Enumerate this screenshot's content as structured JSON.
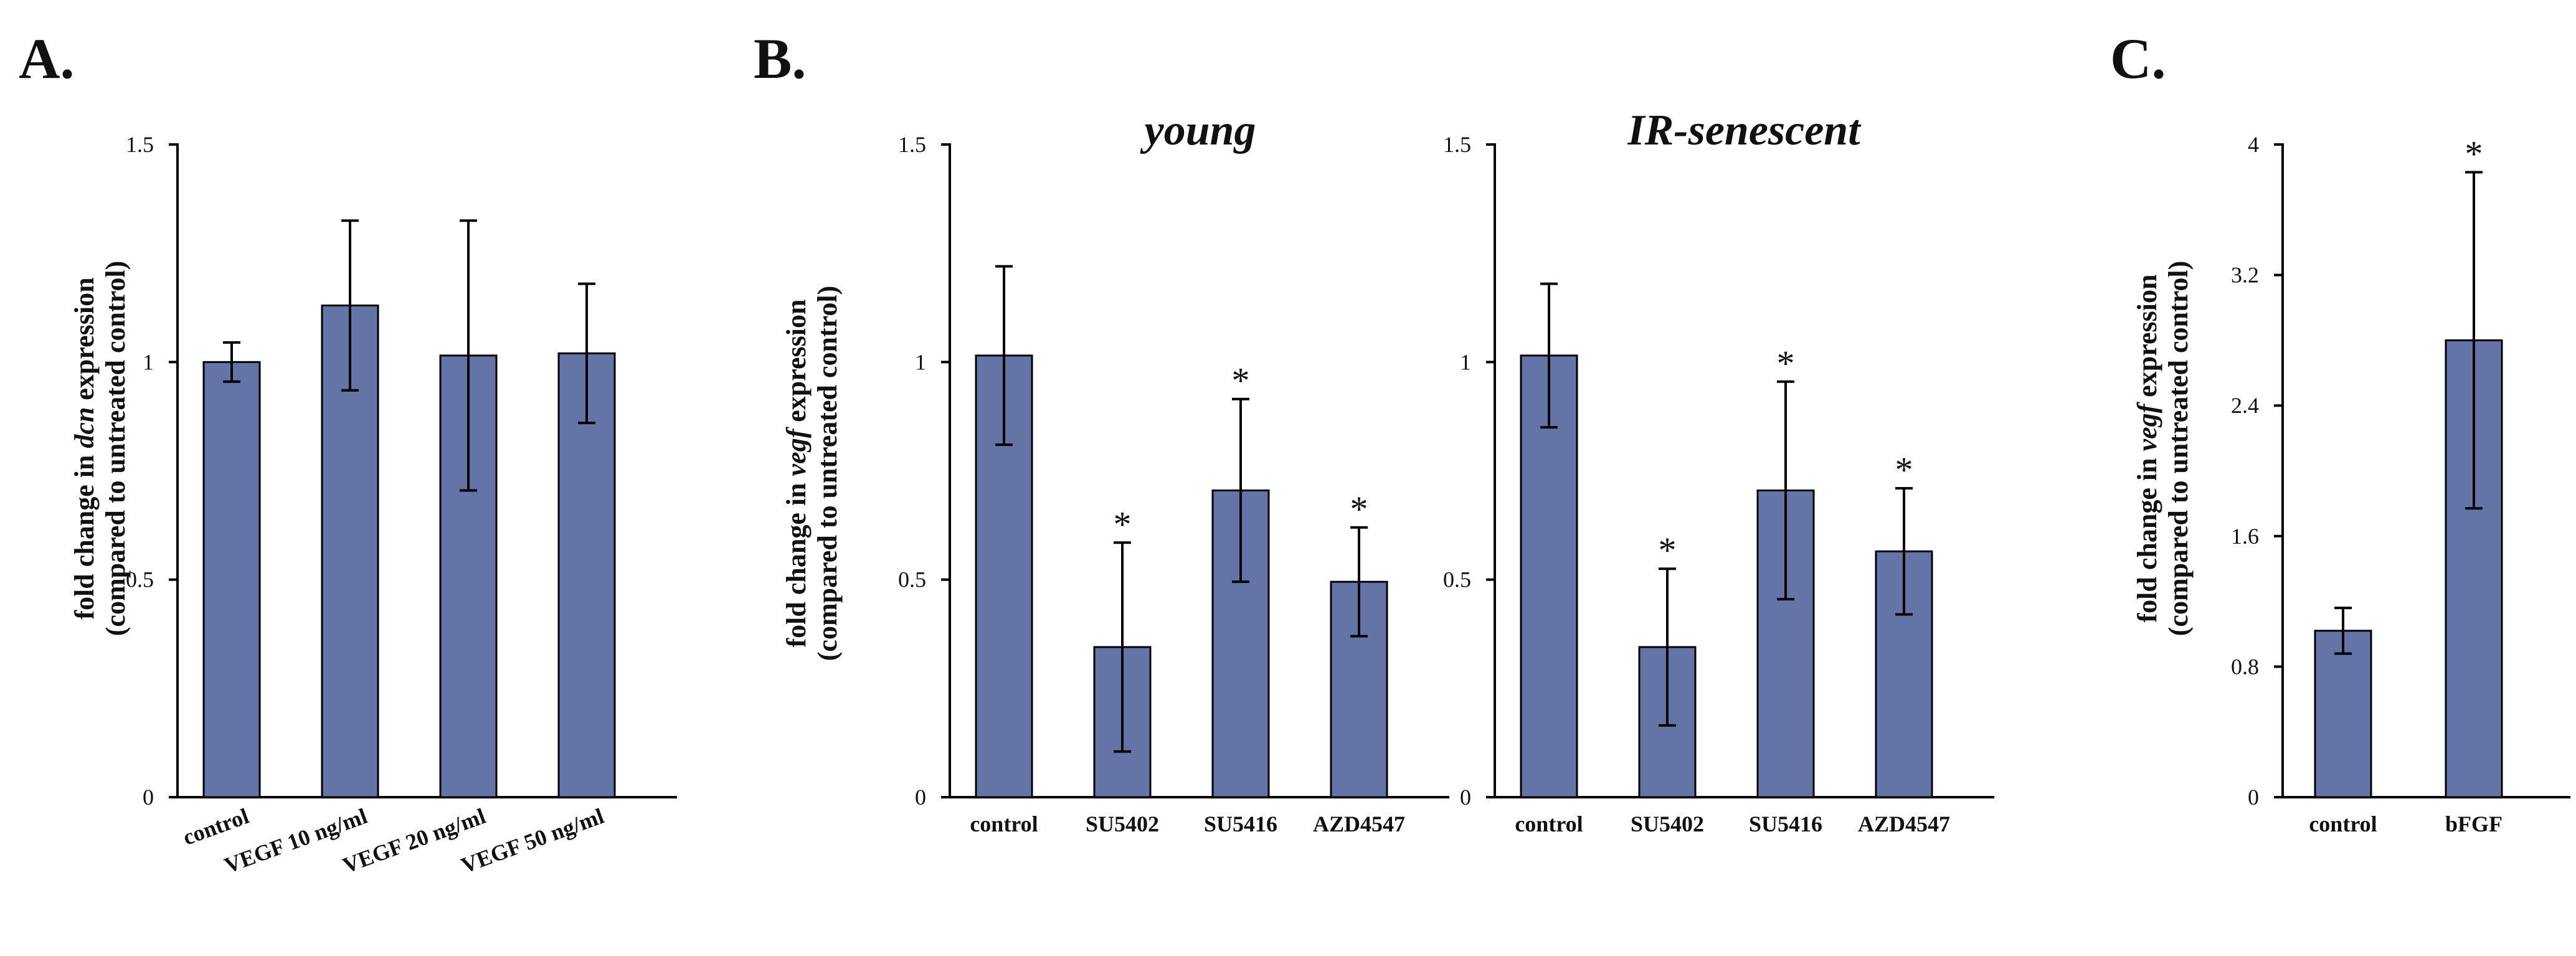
{
  "colors": {
    "bar": "#6474a6",
    "axis": "#000000"
  },
  "chart_data": [
    {
      "type": "bar",
      "panel_label": "A.",
      "title": "",
      "ylabel": [
        "fold change in ",
        "dcn",
        " expression"
      ],
      "ylabel2": "(compared to untreated control)",
      "categories": [
        "control",
        "VEGF 10 ng/ml",
        "VEGF 20 ng/ml",
        "VEGF 50 ng/ml"
      ],
      "values": [
        1.0,
        1.13,
        1.015,
        1.02
      ],
      "errors": [
        0.045,
        0.195,
        0.31,
        0.16
      ],
      "significant": [
        false,
        false,
        false,
        false
      ],
      "ylim": [
        0,
        1.5
      ],
      "yticks": [
        "0",
        "0.5",
        "1",
        "1.5"
      ],
      "ytick_values": [
        0,
        0.5,
        1,
        1.5
      ],
      "rotated_labels": true
    },
    {
      "type": "bar",
      "panel_label": "B.",
      "title": "young",
      "ylabel": [
        "fold change in ",
        "vegf",
        " expression"
      ],
      "ylabel2": "(compared to untreated control)",
      "categories": [
        "control",
        "SU5402",
        "SU5416",
        "AZD4547"
      ],
      "values": [
        1.015,
        0.345,
        0.705,
        0.495
      ],
      "errors": [
        0.205,
        0.24,
        0.21,
        0.125
      ],
      "significant": [
        false,
        true,
        true,
        true
      ],
      "ylim": [
        0,
        1.5
      ],
      "yticks": [
        "0",
        "0.5",
        "1",
        "1.5"
      ],
      "ytick_values": [
        0,
        0.5,
        1,
        1.5
      ],
      "rotated_labels": false
    },
    {
      "type": "bar",
      "panel_label": "",
      "title": "IR-senescent",
      "ylabel": [
        "",
        "",
        ""
      ],
      "ylabel2": "",
      "categories": [
        "control",
        "SU5402",
        "SU5416",
        "AZD4547"
      ],
      "values": [
        1.015,
        0.345,
        0.705,
        0.565
      ],
      "errors": [
        0.165,
        0.18,
        0.25,
        0.145
      ],
      "significant": [
        false,
        true,
        true,
        true
      ],
      "ylim": [
        0,
        1.5
      ],
      "yticks": [
        "0",
        "0.5",
        "1",
        "1.5"
      ],
      "ytick_values": [
        0,
        0.5,
        1,
        1.5
      ],
      "rotated_labels": false
    },
    {
      "type": "bar",
      "panel_label": "C.",
      "title": "",
      "ylabel": [
        "fold change in ",
        "vegf",
        " expression"
      ],
      "ylabel2": "(compared to untreated control)",
      "categories": [
        "control",
        "bFGF"
      ],
      "values": [
        1.02,
        2.8
      ],
      "errors": [
        0.14,
        1.03
      ],
      "significant": [
        false,
        true
      ],
      "ylim": [
        0,
        4
      ],
      "yticks": [
        "0",
        "0.8",
        "1.6",
        "2.4",
        "3.2",
        "4"
      ],
      "ytick_values": [
        0,
        0.8,
        1.6,
        2.4,
        3.2,
        4
      ],
      "rotated_labels": false
    }
  ],
  "significance_marker": "*"
}
